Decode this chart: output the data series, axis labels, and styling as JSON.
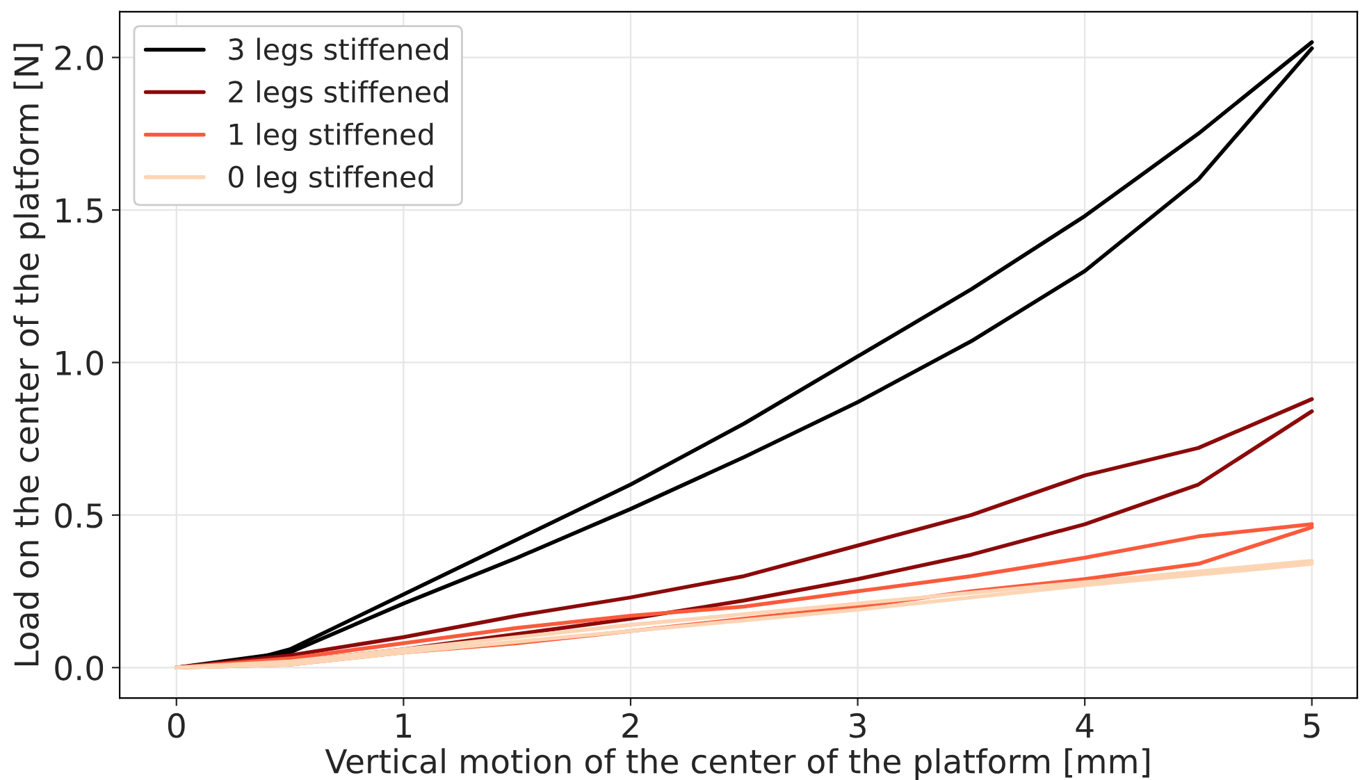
{
  "chart_data": {
    "type": "line",
    "xlabel": "Vertical motion of the center of the platform [mm]",
    "ylabel": "Load on the center of the platform [N]",
    "xlim": [
      -0.25,
      5.2
    ],
    "ylim": [
      -0.1,
      2.15
    ],
    "xticks": [
      0,
      1,
      2,
      3,
      4,
      5
    ],
    "yticks": [
      {
        "value": 0,
        "label": "0.0"
      },
      {
        "value": 0.5,
        "label": "0.5"
      },
      {
        "value": 1,
        "label": "1.0"
      },
      {
        "value": 1.5,
        "label": "1.5"
      },
      {
        "value": 2,
        "label": "2.0"
      }
    ],
    "grid": true,
    "legend": "top left",
    "marker": "none",
    "line_style": "solid",
    "series": [
      {
        "name": "3 legs stiffened",
        "color": "#000000",
        "x": [
          0,
          0.25,
          0.5,
          1,
          1.5,
          2,
          2.5,
          3,
          3.5,
          4,
          4.5,
          5
        ],
        "values": [
          0,
          0.01,
          0.06,
          0.24,
          0.42,
          0.6,
          0.8,
          1.02,
          1.24,
          1.48,
          1.75,
          2.05
        ]
      },
      {
        "color": "#000000",
        "x": [
          0,
          0.5,
          1,
          1.5,
          2,
          2.5,
          3,
          3.5,
          4,
          4.5,
          5
        ],
        "values": [
          0,
          0.05,
          0.21,
          0.36,
          0.52,
          0.69,
          0.87,
          1.07,
          1.3,
          1.6,
          2.03
        ]
      },
      {
        "name": "2 legs stiffened",
        "color": "#8b0a0a",
        "x": [
          0,
          0.5,
          1,
          1.5,
          2,
          2.5,
          3,
          3.5,
          4,
          4.5,
          5
        ],
        "values": [
          0,
          0.04,
          0.1,
          0.17,
          0.23,
          0.3,
          0.4,
          0.5,
          0.63,
          0.72,
          0.88
        ]
      },
      {
        "color": "#8b0a0a",
        "x": [
          0,
          0.5,
          1,
          1.5,
          2,
          2.5,
          3,
          3.5,
          4,
          4.5,
          5
        ],
        "values": [
          0,
          0.02,
          0.06,
          0.11,
          0.16,
          0.22,
          0.29,
          0.37,
          0.47,
          0.6,
          0.84
        ]
      },
      {
        "name": "1 leg stiffened",
        "color": "#fb5a3c",
        "x": [
          0,
          0.5,
          1,
          1.5,
          2,
          2.5,
          3,
          3.5,
          4,
          4.5,
          5
        ],
        "values": [
          0,
          0.03,
          0.08,
          0.13,
          0.17,
          0.2,
          0.25,
          0.3,
          0.36,
          0.43,
          0.47
        ]
      },
      {
        "color": "#fb5a3c",
        "x": [
          0,
          0.5,
          1,
          1.5,
          2,
          2.5,
          3,
          3.5,
          4,
          4.5,
          5
        ],
        "values": [
          0,
          0.01,
          0.05,
          0.08,
          0.12,
          0.16,
          0.2,
          0.25,
          0.29,
          0.34,
          0.46
        ]
      },
      {
        "name": "0 leg stiffened",
        "color": "#fdd5b4",
        "x": [
          0,
          0.5,
          1,
          2,
          3,
          4,
          5
        ],
        "values": [
          0,
          0.02,
          0.06,
          0.14,
          0.21,
          0.28,
          0.35
        ]
      },
      {
        "color": "#fdd5b4",
        "x": [
          0,
          0.5,
          1,
          2,
          3,
          4,
          5
        ],
        "values": [
          0,
          0.01,
          0.05,
          0.12,
          0.19,
          0.27,
          0.34
        ]
      }
    ]
  }
}
